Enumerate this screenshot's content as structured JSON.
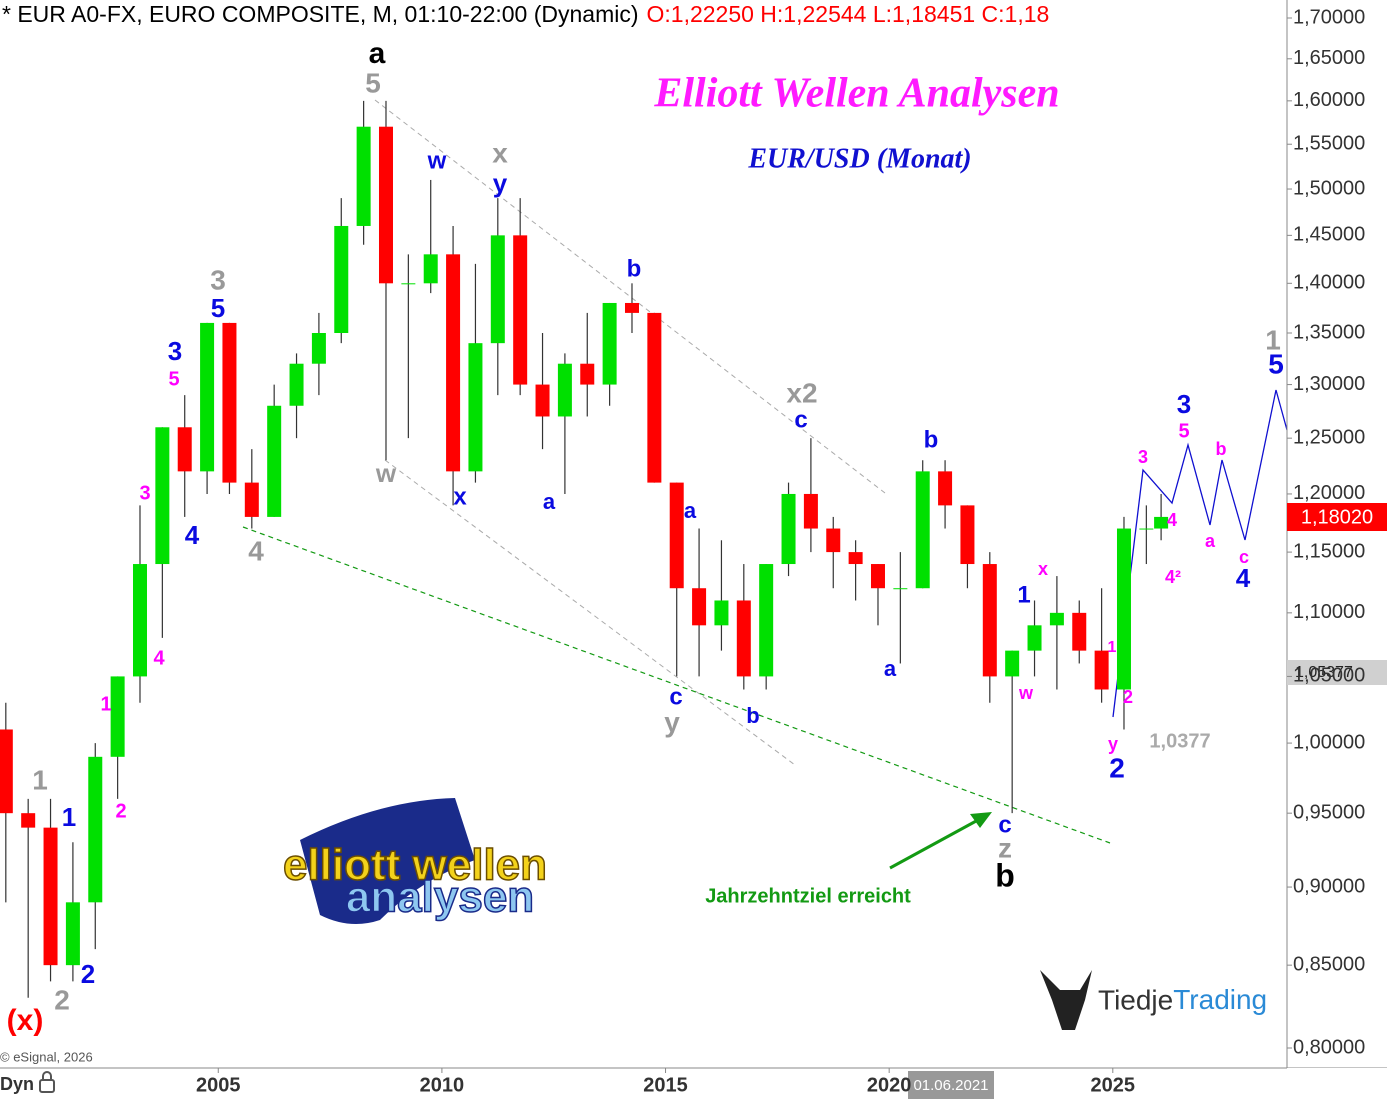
{
  "chart_data": {
    "type": "candlestick",
    "header": "* EUR A0-FX, EURO COMPOSITE, M, 01:10-22:00 (Dynamic)",
    "header_ohlc": "O:1,22250 H:1,22544 L:1,18451 C:1,18",
    "title": "Elliott Wellen Analysen",
    "subtitle": "EUR/USD (Monat)",
    "ylog": true,
    "up_color": "#00e000",
    "down_color": "#ff0000",
    "xlim": [
      2000.12,
      2028.85
    ],
    "xticks": [
      2005,
      2010,
      2015,
      2020,
      2025
    ],
    "ylim": [
      0.8,
      1.7
    ],
    "yticks": [
      {
        "value": 0.8,
        "label": "0,80000"
      },
      {
        "value": 0.85,
        "label": "0,85000"
      },
      {
        "value": 0.9,
        "label": "0,90000"
      },
      {
        "value": 0.95,
        "label": "0,95000"
      },
      {
        "value": 1.0,
        "label": "1,00000"
      },
      {
        "value": 1.05,
        "label": "1,05000"
      },
      {
        "value": 1.1,
        "label": "1,10000"
      },
      {
        "value": 1.15,
        "label": "1,15000"
      },
      {
        "value": 1.2,
        "label": "1,20000"
      },
      {
        "value": 1.25,
        "label": "1,25000"
      },
      {
        "value": 1.3,
        "label": "1,30000"
      },
      {
        "value": 1.35,
        "label": "1,35000"
      },
      {
        "value": 1.4,
        "label": "1,40000"
      },
      {
        "value": 1.45,
        "label": "1,45000"
      },
      {
        "value": 1.5,
        "label": "1,50000"
      },
      {
        "value": 1.55,
        "label": "1,55000"
      },
      {
        "value": 1.6,
        "label": "1,60000"
      },
      {
        "value": 1.65,
        "label": "1,65000"
      },
      {
        "value": 1.7,
        "label": "1,70000"
      }
    ],
    "x": [
      2000.25,
      2000.75,
      2001.25,
      2001.75,
      2002.25,
      2002.75,
      2003.25,
      2003.75,
      2004.25,
      2004.75,
      2005.25,
      2005.75,
      2006.25,
      2006.75,
      2007.25,
      2007.75,
      2008.25,
      2008.75,
      2009.25,
      2009.75,
      2010.25,
      2010.75,
      2011.25,
      2011.75,
      2012.25,
      2012.75,
      2013.25,
      2013.75,
      2014.25,
      2014.75,
      2015.25,
      2015.75,
      2016.25,
      2016.75,
      2017.25,
      2017.75,
      2018.25,
      2018.75,
      2019.25,
      2019.75,
      2020.25,
      2020.75,
      2021.25,
      2021.75,
      2022.25,
      2022.75,
      2023.25,
      2023.75,
      2024.25,
      2024.75,
      2025.25,
      2025.75,
      2026.08
    ],
    "open": [
      1.01,
      0.95,
      0.94,
      0.85,
      0.89,
      0.99,
      1.05,
      1.14,
      1.26,
      1.22,
      1.36,
      1.21,
      1.18,
      1.28,
      1.32,
      1.35,
      1.46,
      1.57,
      1.4,
      1.4,
      1.43,
      1.22,
      1.34,
      1.45,
      1.3,
      1.27,
      1.32,
      1.3,
      1.38,
      1.37,
      1.21,
      1.12,
      1.09,
      1.11,
      1.05,
      1.14,
      1.2,
      1.17,
      1.15,
      1.14,
      1.12,
      1.12,
      1.22,
      1.19,
      1.14,
      1.05,
      1.07,
      1.09,
      1.1,
      1.07,
      1.04,
      1.17,
      1.17
    ],
    "high": [
      1.03,
      0.96,
      0.96,
      0.93,
      1.0,
      1.05,
      1.19,
      1.26,
      1.29,
      1.36,
      1.36,
      1.24,
      1.3,
      1.33,
      1.37,
      1.49,
      1.6,
      1.6,
      1.43,
      1.51,
      1.46,
      1.42,
      1.49,
      1.49,
      1.35,
      1.33,
      1.37,
      1.38,
      1.4,
      1.37,
      1.21,
      1.17,
      1.16,
      1.14,
      1.14,
      1.21,
      1.25,
      1.18,
      1.16,
      1.14,
      1.15,
      1.23,
      1.23,
      1.19,
      1.15,
      1.07,
      1.11,
      1.13,
      1.11,
      1.12,
      1.18,
      1.19,
      1.2
    ],
    "low": [
      0.89,
      0.83,
      0.84,
      0.84,
      0.86,
      0.96,
      1.03,
      1.08,
      1.18,
      1.2,
      1.2,
      1.17,
      1.18,
      1.25,
      1.29,
      1.34,
      1.44,
      1.23,
      1.25,
      1.39,
      1.19,
      1.21,
      1.29,
      1.29,
      1.24,
      1.2,
      1.27,
      1.28,
      1.35,
      1.21,
      1.05,
      1.05,
      1.07,
      1.04,
      1.04,
      1.13,
      1.15,
      1.12,
      1.11,
      1.09,
      1.06,
      1.12,
      1.17,
      1.12,
      1.03,
      0.95,
      1.05,
      1.04,
      1.06,
      1.03,
      1.01,
      1.14,
      1.16
    ],
    "close": [
      0.95,
      0.94,
      0.85,
      0.89,
      0.99,
      1.05,
      1.14,
      1.26,
      1.22,
      1.36,
      1.21,
      1.18,
      1.28,
      1.32,
      1.35,
      1.46,
      1.57,
      1.4,
      1.4,
      1.43,
      1.22,
      1.34,
      1.45,
      1.3,
      1.27,
      1.32,
      1.3,
      1.38,
      1.37,
      1.21,
      1.12,
      1.09,
      1.11,
      1.05,
      1.14,
      1.2,
      1.17,
      1.15,
      1.14,
      1.12,
      1.12,
      1.22,
      1.19,
      1.14,
      1.05,
      1.07,
      1.09,
      1.1,
      1.07,
      1.04,
      1.17,
      1.17,
      1.18
    ],
    "last_price_label": "1,18020",
    "ref_price_label": "1,05377",
    "date_marker": "01.06.2021",
    "target_note": "Jahrzehntziel erreicht",
    "copyright": "© eSignal, 2026",
    "mode": "Dyn",
    "annotations": [
      {
        "text": "a",
        "color": "#000000"
      },
      {
        "text": "5",
        "color": "#999999"
      },
      {
        "text": "w",
        "color": "#0a0ae0"
      },
      {
        "text": "x",
        "color": "#999999"
      },
      {
        "text": "y",
        "color": "#0a0ae0"
      },
      {
        "text": "3",
        "color": "#999999"
      },
      {
        "text": "5",
        "color": "#0a0ae0"
      },
      {
        "text": "3",
        "color": "#0a0ae0"
      },
      {
        "text": "5",
        "color": "#ff00ff"
      },
      {
        "text": "3",
        "color": "#ff00ff"
      },
      {
        "text": "4",
        "color": "#0a0ae0"
      },
      {
        "text": "4",
        "color": "#ff00ff"
      },
      {
        "text": "4",
        "color": "#999999"
      },
      {
        "text": "w",
        "color": "#999999"
      },
      {
        "text": "x",
        "color": "#0a0ae0"
      },
      {
        "text": "a",
        "color": "#0a0ae0"
      },
      {
        "text": "b",
        "color": "#0a0ae0"
      },
      {
        "text": "a",
        "color": "#0a0ae0"
      },
      {
        "text": "c",
        "color": "#0a0ae0"
      },
      {
        "text": "y",
        "color": "#999999"
      },
      {
        "text": "b",
        "color": "#0a0ae0"
      },
      {
        "text": "x2",
        "color": "#999999"
      },
      {
        "text": "c",
        "color": "#0a0ae0"
      },
      {
        "text": "b",
        "color": "#0a0ae0"
      },
      {
        "text": "a",
        "color": "#0a0ae0"
      },
      {
        "text": "1",
        "color": "#0a0ae0"
      },
      {
        "text": "x",
        "color": "#ff00ff"
      },
      {
        "text": "w",
        "color": "#ff00ff"
      },
      {
        "text": "1",
        "color": "#ff00ff"
      },
      {
        "text": "2",
        "color": "#ff00ff"
      },
      {
        "text": "y",
        "color": "#ff00ff"
      },
      {
        "text": "2",
        "color": "#0a0ae0"
      },
      {
        "text": "1,0377",
        "color": "#aaaaaa"
      },
      {
        "text": "c",
        "color": "#0a0ae0"
      },
      {
        "text": "z",
        "color": "#999999"
      },
      {
        "text": "b",
        "color": "#000000"
      },
      {
        "text": "3",
        "color": "#0a0ae0"
      },
      {
        "text": "5",
        "color": "#ff00ff"
      },
      {
        "text": "3",
        "color": "#ff00ff"
      },
      {
        "text": "4",
        "color": "#ff00ff"
      },
      {
        "text": "4²",
        "color": "#ff00ff"
      },
      {
        "text": "a",
        "color": "#ff00ff"
      },
      {
        "text": "b",
        "color": "#ff00ff"
      },
      {
        "text": "c",
        "color": "#ff00ff"
      },
      {
        "text": "4",
        "color": "#0a0ae0"
      },
      {
        "text": "1",
        "color": "#999999"
      },
      {
        "text": "5",
        "color": "#0a0ae0"
      },
      {
        "text": "1",
        "color": "#999999"
      },
      {
        "text": "1",
        "color": "#0a0ae0"
      },
      {
        "text": "2",
        "color": "#999999"
      },
      {
        "text": "2",
        "color": "#0a0ae0"
      },
      {
        "text": "(x)",
        "color": "#ff0000"
      },
      {
        "text": "1",
        "color": "#ff00ff"
      },
      {
        "text": "2",
        "color": "#ff00ff"
      }
    ]
  },
  "logos": {
    "ewa_top": "elliott wellen",
    "ewa_bottom": "analysen",
    "tiedje": "Tiedje",
    "trading": "Trading"
  }
}
